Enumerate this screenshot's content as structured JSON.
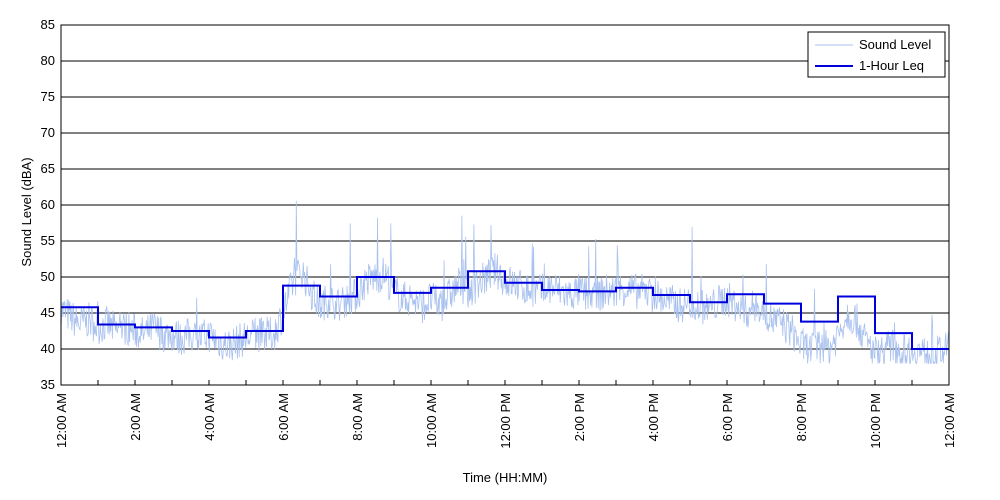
{
  "chart_data": {
    "type": "line",
    "xlabel": "Time (HH:MM)",
    "ylabel": "Sound Level (dBA)",
    "ylim": [
      35,
      85
    ],
    "xlim": [
      0,
      24
    ],
    "yticks": [
      35,
      40,
      45,
      50,
      55,
      60,
      65,
      70,
      75,
      80,
      85
    ],
    "xticks": [
      {
        "hour": 0,
        "label": "12:00 AM"
      },
      {
        "hour": 2,
        "label": "2:00 AM"
      },
      {
        "hour": 4,
        "label": "4:00 AM"
      },
      {
        "hour": 6,
        "label": "6:00 AM"
      },
      {
        "hour": 8,
        "label": "8:00 AM"
      },
      {
        "hour": 10,
        "label": "10:00 AM"
      },
      {
        "hour": 12,
        "label": "12:00 PM"
      },
      {
        "hour": 14,
        "label": "2:00 PM"
      },
      {
        "hour": 16,
        "label": "4:00 PM"
      },
      {
        "hour": 18,
        "label": "6:00 PM"
      },
      {
        "hour": 20,
        "label": "8:00 PM"
      },
      {
        "hour": 22,
        "label": "10:00 PM"
      },
      {
        "hour": 24,
        "label": "12:00 AM"
      }
    ],
    "grid": "horizontal",
    "legend_position": "top-right",
    "series": [
      {
        "name": "Sound Level",
        "color": "#a9c1ef",
        "points": [
          [
            0,
            45.5
          ],
          [
            0.25,
            44.5
          ],
          [
            0.5,
            43.5
          ],
          [
            0.75,
            44
          ],
          [
            1,
            43
          ],
          [
            1.25,
            43.5
          ],
          [
            1.5,
            42.5
          ],
          [
            1.75,
            43
          ],
          [
            2,
            42.5
          ],
          [
            2.25,
            42
          ],
          [
            2.5,
            43
          ],
          [
            2.75,
            42
          ],
          [
            3,
            42
          ],
          [
            3.25,
            41.5
          ],
          [
            3.5,
            42
          ],
          [
            3.75,
            41.5
          ],
          [
            4,
            42
          ],
          [
            4.25,
            41
          ],
          [
            4.5,
            40.5
          ],
          [
            4.75,
            41
          ],
          [
            5,
            41.5
          ],
          [
            5.25,
            42
          ],
          [
            5.5,
            42
          ],
          [
            5.75,
            42
          ],
          [
            6,
            45
          ],
          [
            6.25,
            49
          ],
          [
            6.5,
            51
          ],
          [
            6.75,
            48
          ],
          [
            7,
            46
          ],
          [
            7.25,
            47
          ],
          [
            7.5,
            46
          ],
          [
            7.75,
            47
          ],
          [
            8,
            47.5
          ],
          [
            8.25,
            49.5
          ],
          [
            8.5,
            50
          ],
          [
            8.75,
            50.5
          ],
          [
            9,
            48
          ],
          [
            9.25,
            47
          ],
          [
            9.5,
            47
          ],
          [
            9.75,
            46
          ],
          [
            10,
            47
          ],
          [
            10.25,
            46
          ],
          [
            10.5,
            47.5
          ],
          [
            10.75,
            49
          ],
          [
            11,
            48
          ],
          [
            11.25,
            49
          ],
          [
            11.5,
            50
          ],
          [
            11.75,
            51
          ],
          [
            12,
            49.5
          ],
          [
            12.25,
            49
          ],
          [
            12.5,
            48.5
          ],
          [
            12.75,
            48
          ],
          [
            13,
            48
          ],
          [
            13.25,
            48.5
          ],
          [
            13.5,
            48
          ],
          [
            13.75,
            47.5
          ],
          [
            14,
            48
          ],
          [
            14.25,
            47.5
          ],
          [
            14.5,
            47.5
          ],
          [
            14.75,
            48
          ],
          [
            15,
            48
          ],
          [
            15.25,
            48.5
          ],
          [
            15.5,
            48
          ],
          [
            15.75,
            48
          ],
          [
            16,
            47.5
          ],
          [
            16.25,
            47
          ],
          [
            16.5,
            46.5
          ],
          [
            16.75,
            46
          ],
          [
            17,
            46.5
          ],
          [
            17.25,
            46
          ],
          [
            17.5,
            45.5
          ],
          [
            17.75,
            46.5
          ],
          [
            18,
            47
          ],
          [
            18.25,
            46
          ],
          [
            18.5,
            45
          ],
          [
            18.75,
            46
          ],
          [
            19,
            45
          ],
          [
            19.25,
            44
          ],
          [
            19.5,
            43.5
          ],
          [
            19.75,
            42.5
          ],
          [
            20,
            40.5
          ],
          [
            20.25,
            40
          ],
          [
            20.5,
            40.5
          ],
          [
            20.75,
            40
          ],
          [
            21,
            42
          ],
          [
            21.25,
            45
          ],
          [
            21.5,
            44
          ],
          [
            21.75,
            41
          ],
          [
            22,
            39.5
          ],
          [
            22.25,
            40
          ],
          [
            22.5,
            40.5
          ],
          [
            22.75,
            39.5
          ],
          [
            23,
            40
          ],
          [
            23.25,
            39.5
          ],
          [
            23.5,
            39
          ],
          [
            23.75,
            39.5
          ],
          [
            24,
            40
          ]
        ]
      },
      {
        "name": "1-Hour Leq",
        "color": "#0000dd",
        "type": "step",
        "hours": [
          0,
          1,
          2,
          3,
          4,
          5,
          6,
          7,
          8,
          9,
          10,
          11,
          12,
          13,
          14,
          15,
          16,
          17,
          18,
          19,
          20,
          21,
          22,
          23
        ],
        "values": [
          45.8,
          43.4,
          43.0,
          42.5,
          41.6,
          42.5,
          48.8,
          47.3,
          50.0,
          47.8,
          48.5,
          50.8,
          49.2,
          48.2,
          48.0,
          48.5,
          47.5,
          46.5,
          47.6,
          46.3,
          43.8,
          47.3,
          42.2,
          40.0
        ]
      }
    ]
  }
}
